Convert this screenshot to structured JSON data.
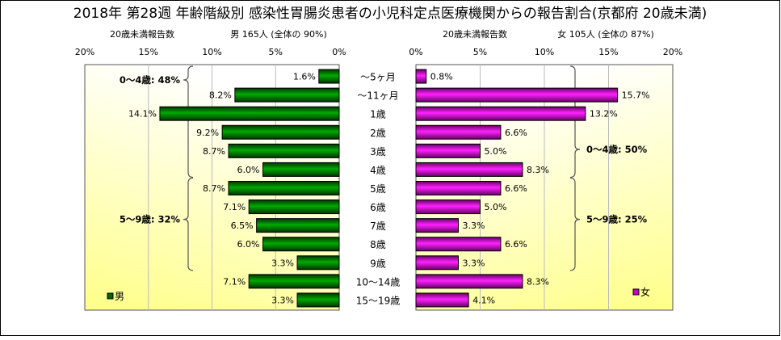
{
  "chart_data": [
    {
      "type": "bar",
      "orientation": "horizontal",
      "title": "2018年 第28週 年齢階級別 感染性胃腸炎患者の小児科定点医療機関からの報告割合(京都府 20歳未満)",
      "subtitle_label": "20歳未満報告数",
      "subtitle_summary": "男 165人 (全体の 90%)",
      "legend": "男",
      "legend_position": "bottom-left",
      "xlim": [
        0,
        20
      ],
      "direction": "reversed",
      "ticks": [
        "20%",
        "15%",
        "10%",
        "5%",
        "0%"
      ],
      "grid": true,
      "color": "#006600",
      "categories": [
        "～5ヶ月",
        "～11ヶ月",
        "1歳",
        "2歳",
        "3歳",
        "4歳",
        "5歳",
        "6歳",
        "7歳",
        "8歳",
        "9歳",
        "10～14歳",
        "15～19歳"
      ],
      "values": [
        1.6,
        8.2,
        14.1,
        9.2,
        8.7,
        6.0,
        8.7,
        7.1,
        6.5,
        6.0,
        3.3,
        7.1,
        3.3
      ],
      "labels": [
        "1.6%",
        "8.2%",
        "14.1%",
        "9.2%",
        "8.7%",
        "6.0%",
        "8.7%",
        "7.1%",
        "6.5%",
        "6.0%",
        "3.3%",
        "7.1%",
        "3.3%"
      ],
      "groups": [
        {
          "label": "0～4歳: 48%",
          "from": 0,
          "to": 5
        },
        {
          "label": "5～9歳: 32%",
          "from": 6,
          "to": 10
        }
      ]
    },
    {
      "type": "bar",
      "orientation": "horizontal",
      "subtitle_label": "20歳未満報告数",
      "subtitle_summary": "女 105人 (全体の 87%)",
      "legend": "女",
      "legend_position": "bottom-right",
      "xlim": [
        0,
        20
      ],
      "ticks": [
        "0%",
        "5%",
        "10%",
        "15%",
        "20%"
      ],
      "grid": true,
      "color": "#cc00cc",
      "categories": [
        "～5ヶ月",
        "～11ヶ月",
        "1歳",
        "2歳",
        "3歳",
        "4歳",
        "5歳",
        "6歳",
        "7歳",
        "8歳",
        "9歳",
        "10～14歳",
        "15～19歳"
      ],
      "values": [
        0.8,
        15.7,
        13.2,
        6.6,
        5.0,
        8.3,
        6.6,
        5.0,
        3.3,
        6.6,
        3.3,
        8.3,
        4.1
      ],
      "labels": [
        "0.8%",
        "15.7%",
        "13.2%",
        "6.6%",
        "5.0%",
        "8.3%",
        "6.6%",
        "5.0%",
        "3.3%",
        "6.6%",
        "3.3%",
        "8.3%",
        "4.1%"
      ],
      "groups": [
        {
          "label": "0～4歳: 50%",
          "from": 0,
          "to": 5
        },
        {
          "label": "5～9歳: 25%",
          "from": 6,
          "to": 10
        }
      ]
    }
  ]
}
